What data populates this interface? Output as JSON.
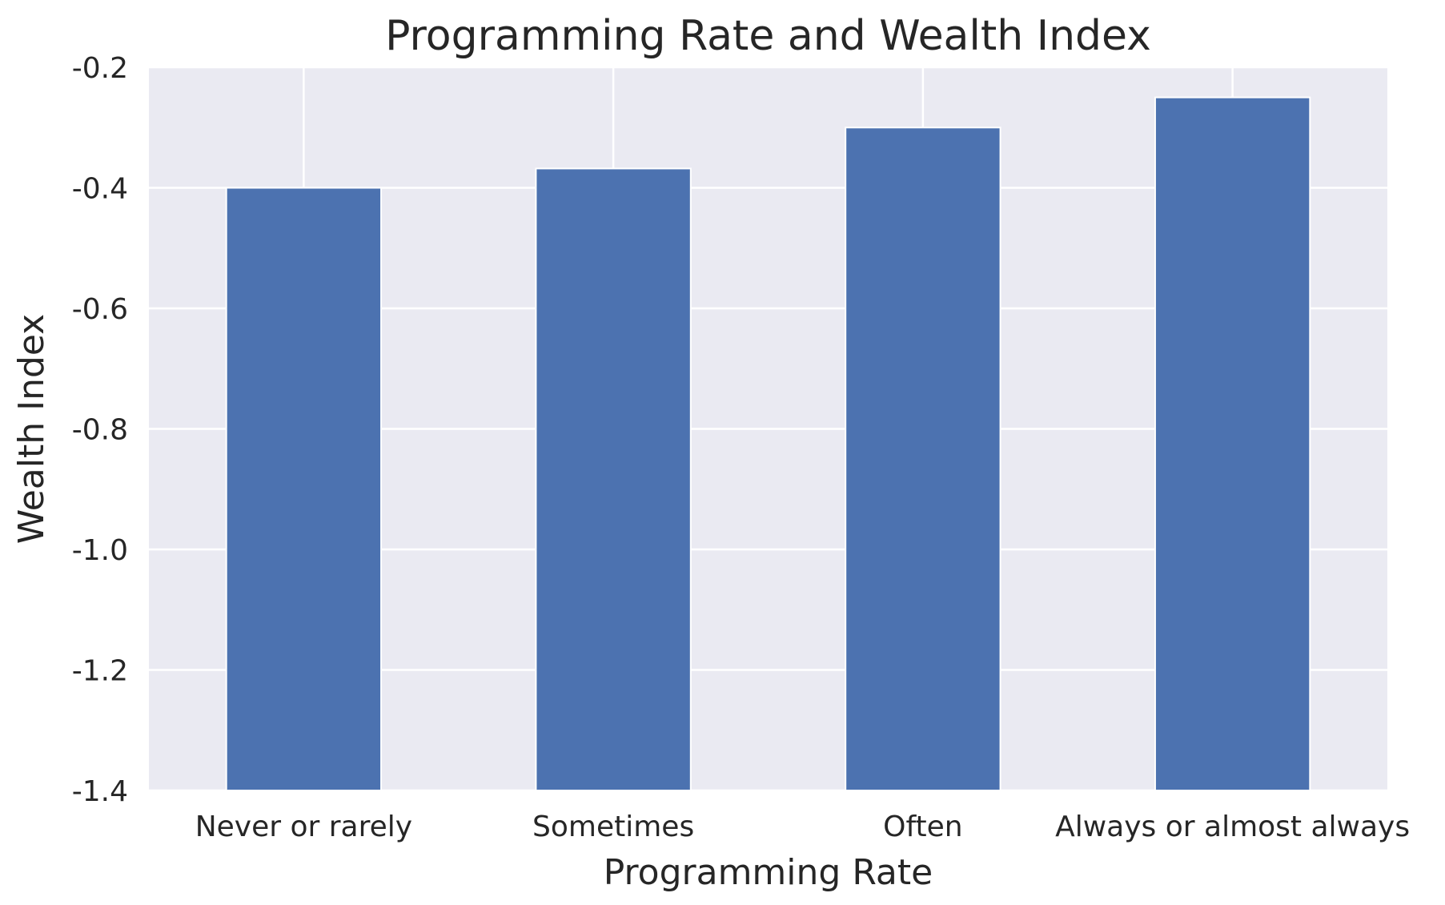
{
  "chart_data": {
    "type": "bar",
    "title": "Programming Rate and Wealth Index",
    "xlabel": "Programming Rate",
    "ylabel": "Wealth Index",
    "categories": [
      "Never or rarely",
      "Sometimes",
      "Often",
      "Always or almost always"
    ],
    "values": [
      -0.4,
      -0.368,
      -0.3,
      -0.25
    ],
    "ylim": [
      -1.4,
      -0.2
    ],
    "yticks": [
      -1.4,
      -1.2,
      -1.0,
      -0.8,
      -0.6,
      -0.4,
      -0.2
    ],
    "ytick_labels": [
      "-1.4",
      "-1.2",
      "-1.0",
      "-0.8",
      "-0.6",
      "-0.4",
      "-0.2"
    ],
    "grid": true,
    "colors": {
      "bar": "#4c72b0",
      "plot_background": "#eaeaf2",
      "grid": "#ffffff",
      "text": "#262626"
    }
  }
}
